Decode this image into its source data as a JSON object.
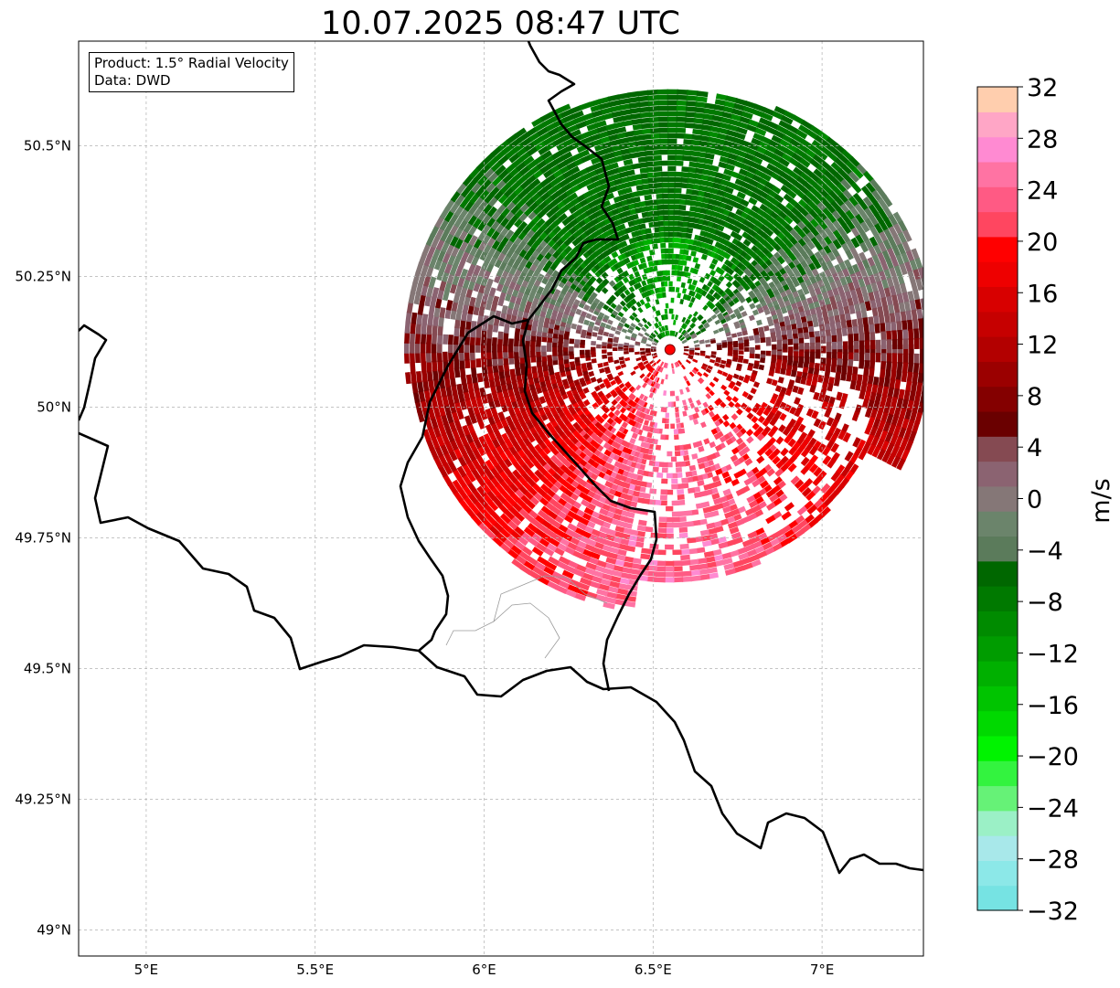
{
  "title": "10.07.2025 08:47 UTC",
  "info": {
    "product": "Product: 1.5° Radial Velocity",
    "data": "Data: DWD"
  },
  "map": {
    "lon_range": [
      4.8,
      7.3
    ],
    "lat_range": [
      48.95,
      50.7
    ],
    "lon_ticks": [
      {
        "value": 5.0,
        "label": "5°E"
      },
      {
        "value": 5.5,
        "label": "5.5°E"
      },
      {
        "value": 6.0,
        "label": "6°E"
      },
      {
        "value": 6.5,
        "label": "6.5°E"
      },
      {
        "value": 7.0,
        "label": "7°E"
      }
    ],
    "lat_ticks": [
      {
        "value": 50.5,
        "label": "50.5°N"
      },
      {
        "value": 50.25,
        "label": "50.25°N"
      },
      {
        "value": 50.0,
        "label": "50°N"
      },
      {
        "value": 49.75,
        "label": "49.75°N"
      },
      {
        "value": 49.5,
        "label": "49.5°N"
      },
      {
        "value": 49.25,
        "label": "49.25°N"
      },
      {
        "value": 49.0,
        "label": "49°N"
      }
    ],
    "radar_site": {
      "lon": 6.55,
      "lat": 50.11,
      "color": "#ff0000"
    }
  },
  "colorbar": {
    "label": "m/s",
    "vmin": -32,
    "vmax": 32,
    "ticks": [
      32,
      28,
      24,
      20,
      16,
      12,
      8,
      4,
      0,
      -4,
      -8,
      -12,
      -16,
      -20,
      -24,
      -28,
      -32
    ],
    "tick_labels": [
      "32",
      "28",
      "24",
      "20",
      "16",
      "12",
      "8",
      "4",
      "0",
      "−4",
      "−8",
      "−12",
      "−16",
      "−20",
      "−24",
      "−28",
      "−32"
    ],
    "colors_bottom_to_top": [
      "#76e3e3",
      "#8ce8e8",
      "#a8e8ea",
      "#9bf0c6",
      "#66f277",
      "#33f33f",
      "#00f300",
      "#00d900",
      "#00c400",
      "#00b000",
      "#009c00",
      "#008b00",
      "#007900",
      "#006700",
      "#5b7b5b",
      "#6b846b",
      "#857777",
      "#8b6371",
      "#854a52",
      "#6a0000",
      "#840000",
      "#9b0000",
      "#b30000",
      "#c60000",
      "#d80000",
      "#ee0000",
      "#ff0000",
      "#ff4660",
      "#ff5a84",
      "#ff73a3",
      "#ff8ad2",
      "#ffa6c6",
      "#ffceae"
    ]
  }
}
